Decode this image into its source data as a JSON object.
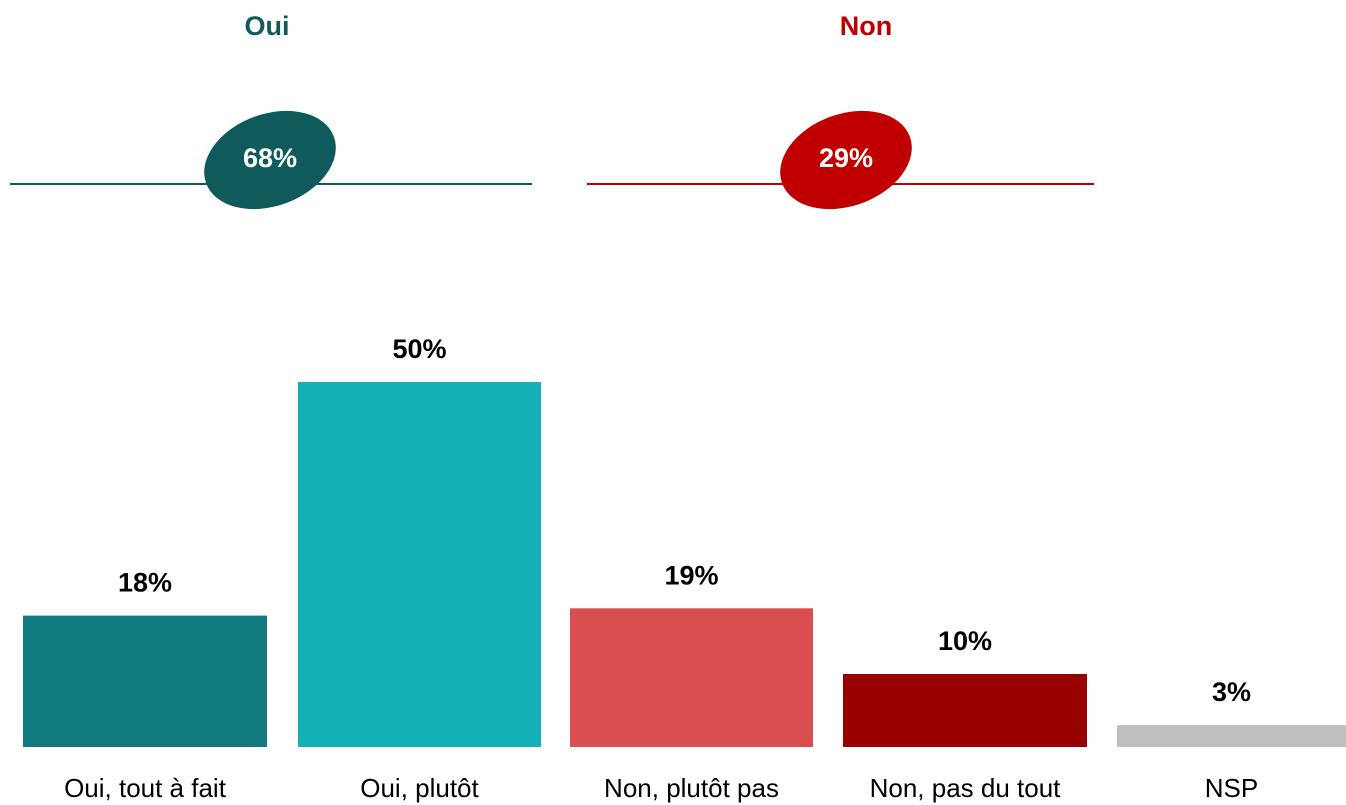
{
  "chart_data": {
    "type": "bar",
    "groups": [
      {
        "name": "Oui",
        "value": 68,
        "value_label": "68%",
        "color": "#0f5b5c"
      },
      {
        "name": "Non",
        "value": 29,
        "value_label": "29%",
        "color": "#c00000"
      }
    ],
    "categories": [
      "Oui, tout à fait",
      "Oui, plutôt",
      "Non, plutôt pas",
      "Non, pas du tout",
      "NSP"
    ],
    "values": [
      18,
      50,
      19,
      10,
      3
    ],
    "value_labels": [
      "18%",
      "50%",
      "19%",
      "10%",
      "3%"
    ],
    "colors": [
      "#107a80",
      "#14b0b8",
      "#d94f50",
      "#990000",
      "#bfbfbf"
    ]
  }
}
